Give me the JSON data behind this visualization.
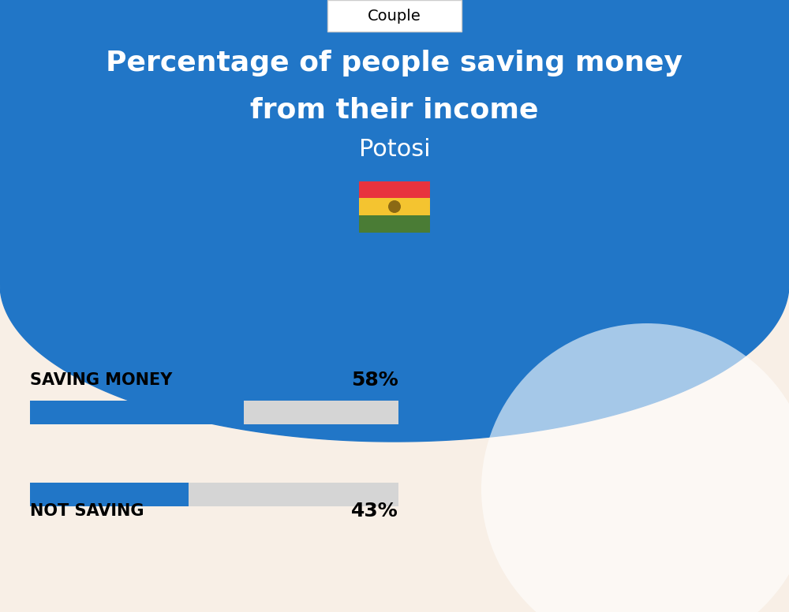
{
  "title_line1": "Percentage of people saving money",
  "title_line2": "from their income",
  "subtitle": "Potosi",
  "tab_label": "Couple",
  "bg_top_color": "#2176C7",
  "bg_bottom_color": "#F8EFE6",
  "bar_blue": "#2176C7",
  "bar_gray": "#D5D5D5",
  "saving_label": "SAVING MONEY",
  "saving_value": 58,
  "saving_pct_label": "58%",
  "not_saving_label": "NOT SAVING",
  "not_saving_value": 43,
  "not_saving_pct_label": "43%",
  "label_fontsize": 15,
  "pct_fontsize": 18,
  "title_fontsize": 26,
  "subtitle_fontsize": 22,
  "tab_fontsize": 14,
  "bar_max": 100,
  "fig_width": 10.0,
  "fig_height": 7.76,
  "dpi": 100
}
